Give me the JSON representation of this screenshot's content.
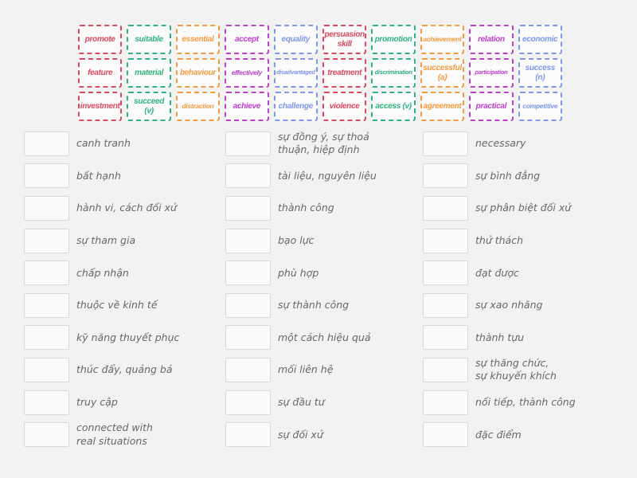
{
  "page": {
    "background": "#f3f2f3",
    "activity_type": "match-up"
  },
  "palette": {
    "red": "#d94a5f",
    "green": "#2fb27e",
    "orange": "#f39b40",
    "purple": "#bb41c9",
    "blue": "#7e97e6",
    "card_background": "#fcfbfc",
    "drop_box_background": "#fbfafb",
    "drop_box_border": "#dad8da",
    "definition_text": "#676767"
  },
  "word_bank": {
    "rows": [
      [
        {
          "label": "promote",
          "color": "red"
        },
        {
          "label": "suitable",
          "color": "green"
        },
        {
          "label": "essential",
          "color": "orange"
        },
        {
          "label": "accept",
          "color": "purple"
        },
        {
          "label": "equality",
          "color": "blue"
        },
        {
          "label": "persuasion skill",
          "color": "red"
        },
        {
          "label": "promotion",
          "color": "green"
        },
        {
          "label": "achievement",
          "color": "orange"
        },
        {
          "label": "relation",
          "color": "purple"
        },
        {
          "label": "economic",
          "color": "blue"
        }
      ],
      [
        {
          "label": "feature",
          "color": "red"
        },
        {
          "label": "material",
          "color": "green"
        },
        {
          "label": "behaviour",
          "color": "orange"
        },
        {
          "label": "effectively",
          "color": "purple"
        },
        {
          "label": "disadvantaged",
          "color": "blue"
        },
        {
          "label": "treatment",
          "color": "red"
        },
        {
          "label": "discrimination",
          "color": "green"
        },
        {
          "label": "successful (a)",
          "color": "orange"
        },
        {
          "label": "participation",
          "color": "purple"
        },
        {
          "label": "success (n)",
          "color": "blue"
        }
      ],
      [
        {
          "label": "investment",
          "color": "red"
        },
        {
          "label": "succeed (v)",
          "color": "green"
        },
        {
          "label": "distraction",
          "color": "orange"
        },
        {
          "label": "achieve",
          "color": "purple"
        },
        {
          "label": "challenge",
          "color": "blue"
        },
        {
          "label": "violence",
          "color": "red"
        },
        {
          "label": "access (v)",
          "color": "green"
        },
        {
          "label": "agreement",
          "color": "orange"
        },
        {
          "label": "practical",
          "color": "purple"
        },
        {
          "label": "competitive",
          "color": "blue"
        }
      ]
    ]
  },
  "match_list": {
    "columns": [
      {
        "rows": [
          {
            "text": "canh tranh"
          },
          {
            "text": "bất hạnh"
          },
          {
            "text": "hành vi, cách đối xử"
          },
          {
            "text": "sự tham gia"
          },
          {
            "text": "chấp nhận"
          },
          {
            "text": "thuộc về kinh tế"
          },
          {
            "text": "kỹ năng thuyết phục"
          },
          {
            "text": "thúc đẩy, quảng bá"
          },
          {
            "text": "truy cập"
          },
          {
            "text": "connected with\nreal situations"
          }
        ]
      },
      {
        "rows": [
          {
            "text": "sự đồng ý, sự thoả\nthuận, hiệp định"
          },
          {
            "text": "tài liệu, nguyên liệu"
          },
          {
            "text": "thành công"
          },
          {
            "text": "bạo lực"
          },
          {
            "text": "phù hợp"
          },
          {
            "text": "sự thành công"
          },
          {
            "text": "một cách hiệu quả"
          },
          {
            "text": "mối liên hệ"
          },
          {
            "text": "sự đầu tư"
          },
          {
            "text": "sự đối xử"
          }
        ]
      },
      {
        "rows": [
          {
            "text": "necessary"
          },
          {
            "text": "sự bình đẳng"
          },
          {
            "text": "sự phân biệt đối xử"
          },
          {
            "text": "thử thách"
          },
          {
            "text": "đạt được"
          },
          {
            "text": "sự xao nhãng"
          },
          {
            "text": "thành tựu"
          },
          {
            "text": "sự thăng chức,\nsự khuyến khích"
          },
          {
            "text": "nối tiếp, thành công"
          },
          {
            "text": "đặc điểm"
          }
        ]
      }
    ]
  }
}
